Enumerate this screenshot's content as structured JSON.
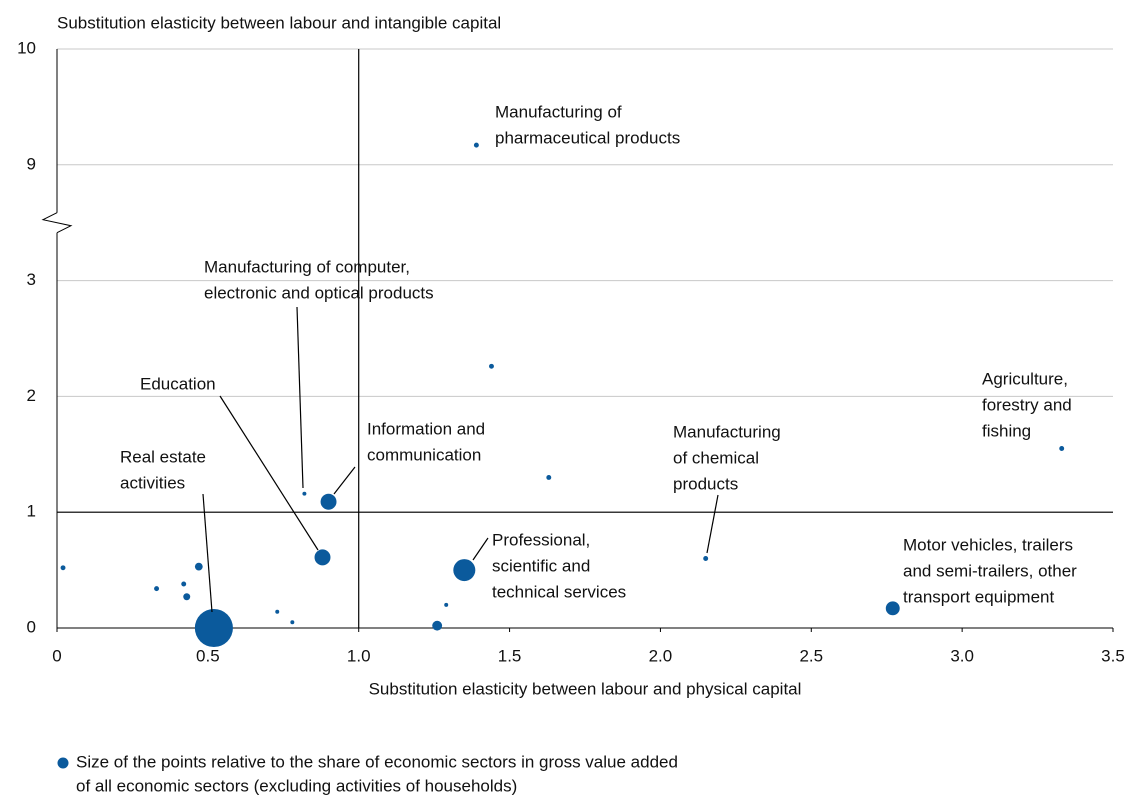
{
  "chart_data": {
    "type": "scatter",
    "y_label": "Substitution elasticity between labour and intangible capital",
    "x_label": "Substitution elasticity between labour and physical capital",
    "note": [
      "Size of the points relative to the share of economic sectors in gross value added",
      "of all economic sectors (excluding activities of households)"
    ],
    "color": "#0b5a9c",
    "xlim": [
      0,
      3.5
    ],
    "xticks": [
      0,
      0.5,
      {
        "value": 1,
        "label": "1.0"
      },
      1.5,
      {
        "value": 2,
        "label": "2.0"
      },
      2.5,
      {
        "value": 3,
        "label": "3.0"
      },
      3.5
    ],
    "ylim": [
      0,
      10
    ],
    "yticks": [
      0,
      1,
      2,
      3,
      9,
      10
    ],
    "ybreak": [
      3,
      8
    ],
    "grid": true,
    "ref_x": 1,
    "ref_y": 1,
    "x": [
      0.02,
      0.33,
      0.42,
      0.43,
      0.47,
      0.52,
      0.73,
      0.78,
      0.82,
      0.88,
      0.9,
      1.26,
      1.29,
      1.35,
      1.39,
      1.44,
      1.63,
      2.15,
      2.77,
      3.33
    ],
    "y": [
      0.52,
      0.34,
      0.38,
      0.27,
      0.53,
      0.0,
      0.14,
      0.05,
      1.16,
      0.61,
      1.09,
      0.02,
      0.2,
      0.5,
      9.17,
      2.26,
      1.3,
      0.6,
      0.17,
      1.55
    ],
    "sizes": [
      0.2,
      0.2,
      0.2,
      0.4,
      0.5,
      12,
      0.13,
      0.13,
      0.13,
      2.1,
      2.1,
      0.8,
      0.13,
      4,
      0.2,
      0.2,
      0.2,
      0.2,
      1.6,
      0.2
    ],
    "annotations": [
      {
        "lines": [
          "Manufacturing of",
          "pharmaceutical products"
        ]
      },
      {
        "lines": [
          "Manufacturing of computer,",
          "electronic and optical products"
        ]
      },
      {
        "lines": [
          "Education"
        ]
      },
      {
        "lines": [
          "Real estate",
          "activities"
        ]
      },
      {
        "lines": [
          "Information and",
          "communication"
        ]
      },
      {
        "lines": [
          "Manufacturing",
          "of chemical",
          "products"
        ]
      },
      {
        "lines": [
          "Professional,",
          "scientific and",
          "technical services"
        ]
      },
      {
        "lines": [
          "Agriculture,",
          "forestry and",
          "fishing"
        ]
      },
      {
        "lines": [
          "Motor vehicles, trailers",
          "and semi-trailers, other",
          "transport equipment"
        ]
      }
    ]
  }
}
